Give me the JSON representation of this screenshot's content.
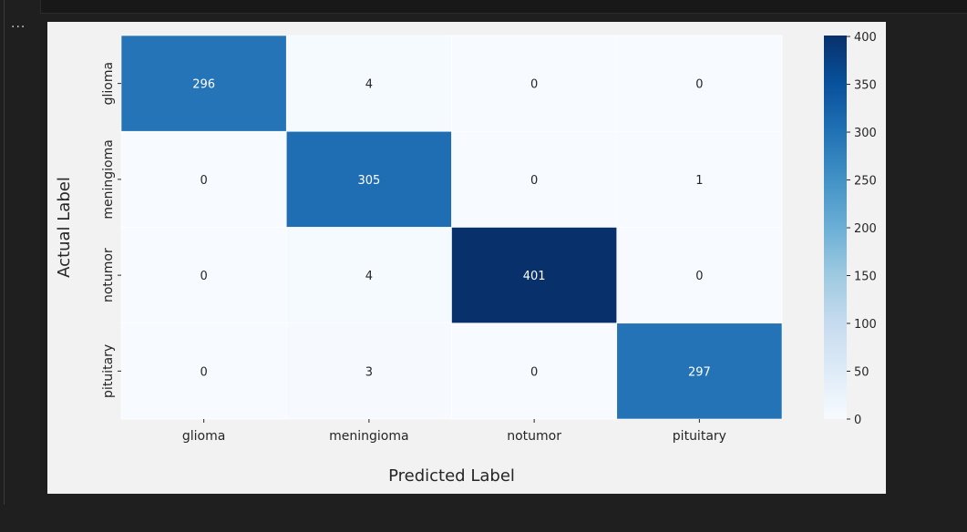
{
  "cell": {
    "more_label": "..."
  },
  "chart_data": {
    "type": "heatmap",
    "xlabel": "Predicted Label",
    "ylabel": "Actual Label",
    "x_categories": [
      "glioma",
      "meningioma",
      "notumor",
      "pituitary"
    ],
    "y_categories": [
      "glioma",
      "meningioma",
      "notumor",
      "pituitary"
    ],
    "matrix": [
      [
        296,
        4,
        0,
        0
      ],
      [
        0,
        305,
        0,
        1
      ],
      [
        0,
        4,
        401,
        0
      ],
      [
        0,
        3,
        0,
        297
      ]
    ],
    "colormap": "Blues",
    "colorbar": {
      "min": 0,
      "max": 401,
      "ticks": [
        0,
        50,
        100,
        150,
        200,
        250,
        300,
        350,
        400
      ]
    },
    "colors": {
      "low": "#f7fbff",
      "high": "#08306b",
      "grid_line": "#ffffff"
    }
  }
}
